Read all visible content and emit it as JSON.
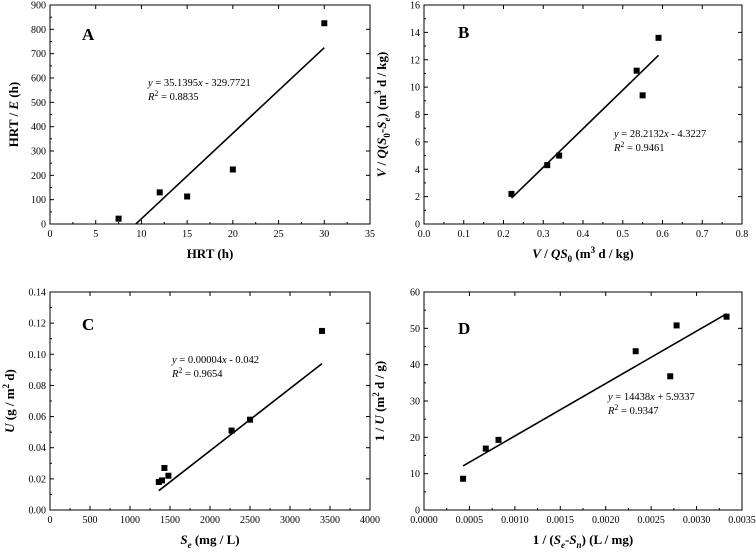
{
  "chart_data": [
    {
      "id": "A",
      "type": "scatter",
      "panel_label": "A",
      "xlabel": "HRT (h)",
      "ylabel": "HRT / E (h)",
      "xlim": [
        0,
        35
      ],
      "ylim": [
        0,
        900
      ],
      "xticks": [
        0,
        5,
        10,
        15,
        20,
        25,
        30,
        35
      ],
      "yticks": [
        0,
        100,
        200,
        300,
        400,
        500,
        600,
        700,
        800,
        900
      ],
      "tick_labels_x": [
        "0",
        "5",
        "10",
        "15",
        "20",
        "25",
        "30",
        "35"
      ],
      "tick_labels_y": [
        "0",
        "100",
        "200",
        "300",
        "400",
        "500",
        "600",
        "700",
        "800",
        "900"
      ],
      "points": [
        [
          7.5,
          22
        ],
        [
          12,
          130
        ],
        [
          15,
          113
        ],
        [
          20,
          224
        ],
        [
          30,
          825
        ]
      ],
      "fit": {
        "slope": 35.1395,
        "intercept": -329.7721,
        "x_range": [
          9.38,
          30
        ]
      },
      "equation": "y = 35.1395x - 329.7721",
      "r2": "R2 = 0.8835"
    },
    {
      "id": "B",
      "type": "scatter",
      "panel_label": "B",
      "xlabel": "V / QS0 (m3 d / kg)",
      "ylabel": "V / Q(S0-Se) (m3 d / kg)",
      "xlim": [
        0,
        0.8
      ],
      "ylim": [
        0,
        16
      ],
      "xticks": [
        0,
        0.1,
        0.2,
        0.3,
        0.4,
        0.5,
        0.6,
        0.7,
        0.8
      ],
      "yticks": [
        0,
        2,
        4,
        6,
        8,
        10,
        12,
        14,
        16
      ],
      "tick_labels_x": [
        "0.0",
        "0.1",
        "0.2",
        "0.3",
        "0.4",
        "0.5",
        "0.6",
        "0.7",
        "0.8"
      ],
      "tick_labels_y": [
        "0",
        "2",
        "4",
        "6",
        "8",
        "10",
        "12",
        "14",
        "16"
      ],
      "points": [
        [
          0.22,
          2.2
        ],
        [
          0.31,
          4.3
        ],
        [
          0.34,
          5.0
        ],
        [
          0.535,
          11.2
        ],
        [
          0.55,
          9.4
        ],
        [
          0.59,
          13.6
        ]
      ],
      "fit": {
        "slope": 28.2132,
        "intercept": -4.3227,
        "x_range": [
          0.22,
          0.59
        ]
      },
      "equation": "y = 28.2132x - 4.3227",
      "r2": "R2 = 0.9461"
    },
    {
      "id": "C",
      "type": "scatter",
      "panel_label": "C",
      "xlabel": "Se (mg / L)",
      "ylabel": "U (g / m2 d)",
      "xlim": [
        0,
        4000
      ],
      "ylim": [
        0,
        0.14
      ],
      "xticks": [
        0,
        500,
        1000,
        1500,
        2000,
        2500,
        3000,
        3500,
        4000
      ],
      "yticks": [
        0,
        0.02,
        0.04,
        0.06,
        0.08,
        0.1,
        0.12,
        0.14
      ],
      "tick_labels_x": [
        "0",
        "500",
        "1000",
        "1500",
        "2000",
        "2500",
        "3000",
        "3500",
        "4000"
      ],
      "tick_labels_y": [
        "0.00",
        "0.02",
        "0.04",
        "0.06",
        "0.08",
        "0.10",
        "0.12",
        "0.14"
      ],
      "points": [
        [
          1360,
          0.018
        ],
        [
          1400,
          0.019
        ],
        [
          1430,
          0.027
        ],
        [
          1480,
          0.022
        ],
        [
          2270,
          0.051
        ],
        [
          2500,
          0.058
        ],
        [
          3400,
          0.115
        ]
      ],
      "fit": {
        "slope": 4e-05,
        "intercept": -0.042,
        "x_range": [
          1360,
          3400
        ]
      },
      "equation": "y = 0.00004x - 0.042",
      "r2": "R2 = 0.9654"
    },
    {
      "id": "D",
      "type": "scatter",
      "panel_label": "D",
      "xlabel": "1 / (Se-Sn) (L / mg)",
      "ylabel": "1 / U (m2 d / g)",
      "xlim": [
        0,
        0.0035
      ],
      "ylim": [
        0,
        60
      ],
      "xticks": [
        0,
        0.0005,
        0.001,
        0.0015,
        0.002,
        0.0025,
        0.003,
        0.0035
      ],
      "yticks": [
        0,
        10,
        20,
        30,
        40,
        50,
        60
      ],
      "tick_labels_x": [
        "0.0000",
        "0.0005",
        "0.0010",
        "0.0015",
        "0.0020",
        "0.0025",
        "0.0030",
        "0.0035"
      ],
      "tick_labels_y": [
        "0",
        "10",
        "20",
        "30",
        "40",
        "50",
        "60"
      ],
      "points": [
        [
          0.00043,
          8.6
        ],
        [
          0.00068,
          16.9
        ],
        [
          0.00082,
          19.3
        ],
        [
          0.00233,
          43.7
        ],
        [
          0.00271,
          36.8
        ],
        [
          0.00278,
          50.8
        ],
        [
          0.00333,
          53.2
        ]
      ],
      "fit": {
        "slope": 14438,
        "intercept": 5.9337,
        "x_range": [
          0.00043,
          0.00333
        ]
      },
      "equation": "y = 14438x + 5.9337",
      "r2": "R2 = 0.9347"
    }
  ]
}
